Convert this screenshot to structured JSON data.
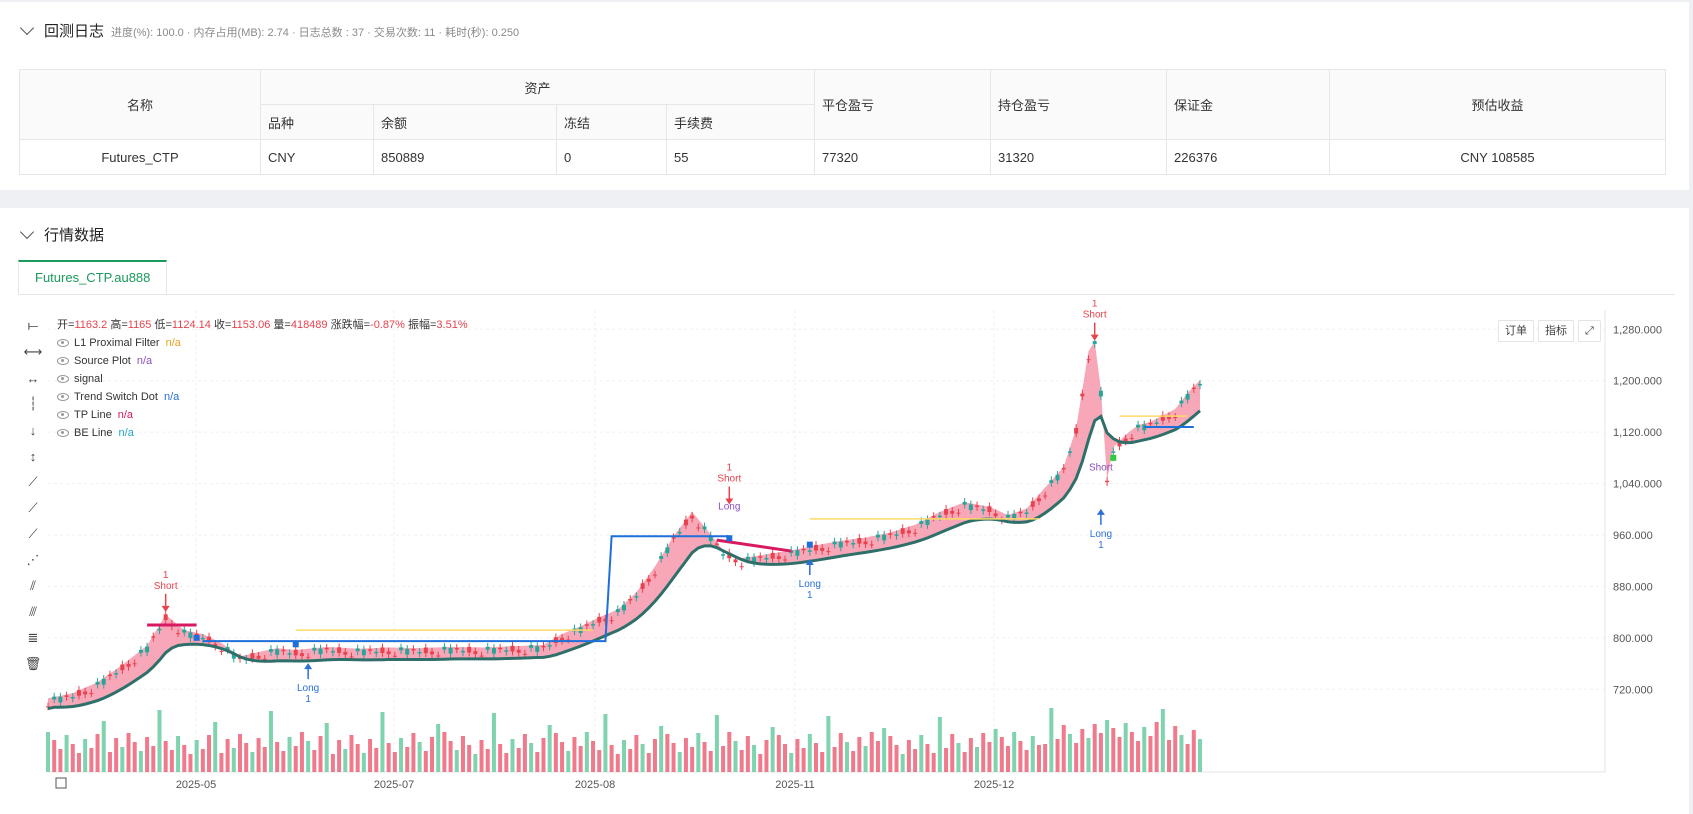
{
  "log": {
    "title": "回测日志",
    "summary": "进度(%): 100.0 · 内存占用(MB): 2.74 · 日志总数 : 37 · 交易次数:  11 · 耗时(秒): 0.250"
  },
  "asset_table": {
    "headers": {
      "name": "名称",
      "asset": "资产",
      "variety": "品种",
      "balance": "余额",
      "frozen": "冻结",
      "fee": "手续费",
      "close_pnl": "平仓盈亏",
      "hold_pnl": "持仓盈亏",
      "margin": "保证金",
      "est_profit": "预估收益"
    },
    "row": {
      "name": "Futures_CTP",
      "variety": "CNY",
      "balance": "850889",
      "frozen": "0",
      "fee": "55",
      "close_pnl": "77320",
      "hold_pnl": "31320",
      "margin": "226376",
      "est_profit": "CNY 108585"
    }
  },
  "market": {
    "title": "行情数据",
    "tab": "Futures_CTP.au888",
    "buttons": {
      "order": "订单",
      "indicator": "指标"
    },
    "ohlc": {
      "open_label": "开=",
      "open": "1163.2",
      "high_label": "高=",
      "high": "1165",
      "low_label": "低=",
      "low": "1124.14",
      "close_label": "收=",
      "close": "1153.06",
      "vol_label": "量=",
      "vol": "418489",
      "chg_label": "涨跌幅=",
      "chg": "-0.87%",
      "amp_label": "振幅=",
      "amp": "3.51%"
    },
    "legend": [
      {
        "name": "L1 Proximal Filter",
        "value": "n/a",
        "color": "#f0a020"
      },
      {
        "name": "Source Plot",
        "value": "n/a",
        "color": "#8a4fbf"
      },
      {
        "name": "signal",
        "value": "",
        "color": "#333333"
      },
      {
        "name": "Trend Switch Dot",
        "value": "n/a",
        "color": "#2a6fdb"
      },
      {
        "name": "TP Line",
        "value": "n/a",
        "color": "#d81b60"
      },
      {
        "name": "BE Line",
        "value": "n/a",
        "color": "#1fa5c9"
      }
    ],
    "toolbar_icons": [
      "horizontal-ray-icon",
      "horizontal-line-icon",
      "horizontal-segment-icon",
      "vertical-line-icon",
      "arrow-down-icon",
      "vertical-measure-icon",
      "trend-line-icon",
      "ray-icon",
      "extended-line-icon",
      "price-range-icon",
      "parallel-channel-icon",
      "pitchfork-icon",
      "fib-icon",
      "trash-icon"
    ]
  },
  "chart_data": {
    "type": "candlestick",
    "y_ticks": [
      "1,280.000",
      "1,200.000",
      "1,120.000",
      "1,040.000",
      "960.000",
      "880.000",
      "800.000",
      "720.000"
    ],
    "x_ticks": [
      "2025-05",
      "2025-07",
      "2025-08",
      "2025-11",
      "2025-12"
    ],
    "ylim": [
      680,
      1310
    ],
    "price_path": [
      [
        0,
        700
      ],
      [
        4,
        708
      ],
      [
        8,
        725
      ],
      [
        12,
        752
      ],
      [
        16,
        782
      ],
      [
        19,
        830
      ],
      [
        22,
        806
      ],
      [
        25,
        800
      ],
      [
        28,
        786
      ],
      [
        31,
        765
      ],
      [
        34,
        772
      ],
      [
        37,
        778
      ],
      [
        40,
        775
      ],
      [
        45,
        780
      ],
      [
        50,
        777
      ],
      [
        55,
        779
      ],
      [
        60,
        778
      ],
      [
        65,
        780
      ],
      [
        70,
        779
      ],
      [
        75,
        781
      ],
      [
        80,
        783
      ],
      [
        83,
        800
      ],
      [
        86,
        812
      ],
      [
        89,
        826
      ],
      [
        92,
        838
      ],
      [
        95,
        865
      ],
      [
        98,
        905
      ],
      [
        101,
        952
      ],
      [
        104,
        990
      ],
      [
        107,
        955
      ],
      [
        109,
        930
      ],
      [
        112,
        918
      ],
      [
        116,
        924
      ],
      [
        120,
        930
      ],
      [
        124,
        938
      ],
      [
        128,
        945
      ],
      [
        132,
        950
      ],
      [
        136,
        958
      ],
      [
        140,
        970
      ],
      [
        144,
        990
      ],
      [
        148,
        1005
      ],
      [
        152,
        998
      ],
      [
        155,
        985
      ],
      [
        158,
        995
      ],
      [
        161,
        1028
      ],
      [
        164,
        1060
      ],
      [
        166,
        1120
      ],
      [
        168,
        1240
      ],
      [
        169,
        1255
      ],
      [
        170,
        1180
      ],
      [
        171,
        1040
      ],
      [
        172,
        1090
      ],
      [
        174,
        1110
      ],
      [
        176,
        1125
      ],
      [
        178,
        1130
      ],
      [
        180,
        1140
      ],
      [
        182,
        1150
      ],
      [
        184,
        1175
      ],
      [
        186,
        1195
      ]
    ],
    "signals": [
      {
        "type": "short",
        "label1": "1",
        "label2": "Short",
        "x": 19,
        "price": 828
      },
      {
        "type": "long",
        "label1": "Long",
        "label2": "1",
        "x": 42,
        "price": 770
      },
      {
        "type": "short",
        "label1": "1",
        "label2": "Short",
        "x": 110,
        "price": 995
      },
      {
        "type": "long",
        "label1": "Long",
        "label2": "1",
        "x": 123,
        "price": 932
      },
      {
        "type": "short",
        "label1": "1",
        "label2": "Short",
        "x": 169,
        "price": 1250
      },
      {
        "type": "long",
        "label1": "Long",
        "label2": "1",
        "x": 170,
        "price": 1010
      }
    ],
    "source_labels": [
      {
        "text": "Long",
        "x": 110
      },
      {
        "text": "Short",
        "x": 170
      }
    ]
  }
}
